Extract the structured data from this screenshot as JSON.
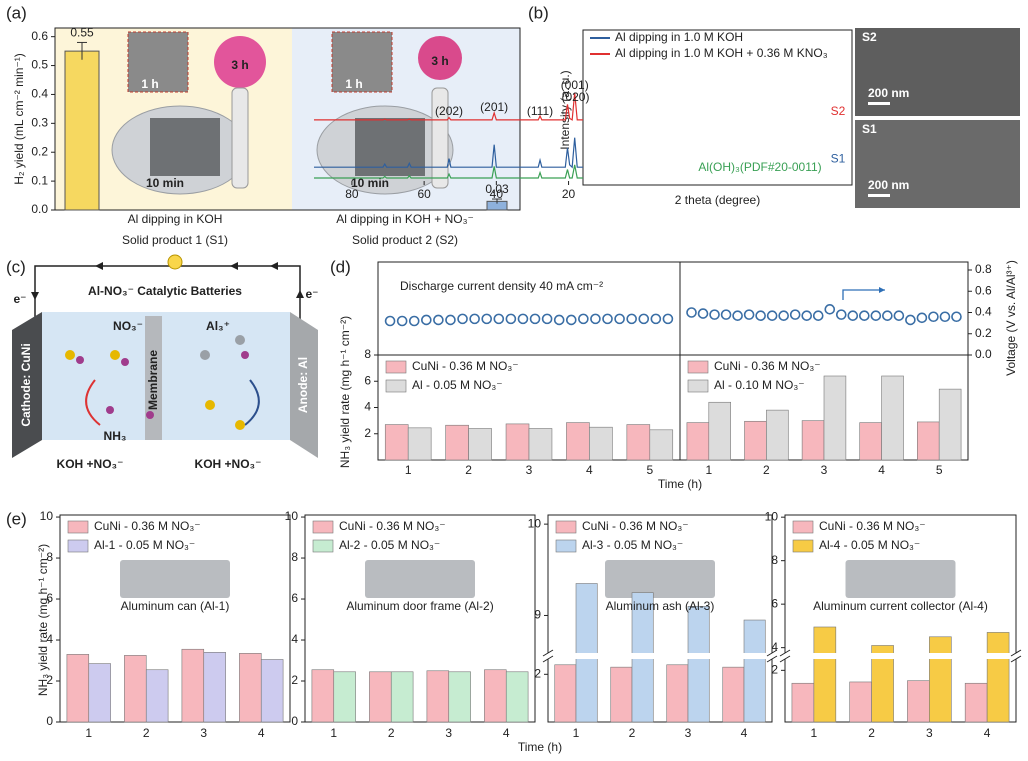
{
  "panels": [
    "(a)",
    "(b)",
    "(c)",
    "(d)",
    "(e)"
  ],
  "chart_data": [
    {
      "type": "bar",
      "ylabel": "H₂ yield (mL cm⁻² min⁻¹)",
      "categories": [
        "Al dipping in  KOH",
        "Al dipping in KOH + NO₃⁻"
      ],
      "sublabels": [
        "Solid product 1 (S1)",
        "Solid product 2 (S2)"
      ],
      "values": [
        0.55,
        0.03
      ],
      "errors": [
        0.03,
        0.008
      ],
      "colors": [
        "#f6d860",
        "#8eb1dc"
      ],
      "ylim": [
        0,
        0.63
      ],
      "yticks": [
        {
          "value": 0,
          "label": "0.0"
        },
        0.1,
        0.2,
        0.3,
        0.4,
        0.5,
        0.6
      ],
      "annotations": [
        "1 h",
        "3 h",
        "10 min",
        "1 h",
        "3 h",
        "10 min"
      ]
    },
    {
      "type": "line",
      "xlabel": "2 theta (degree)",
      "ylabel": "Intensity (a. u.)",
      "xlim": [
        16,
        90.5
      ],
      "xticks": [
        20,
        40,
        60,
        80
      ],
      "ylim": [
        0,
        10
      ],
      "x": [
        16,
        17.6,
        18.3,
        19.0,
        19.7,
        20.3,
        20.9,
        27.4,
        27.9,
        28.4,
        40.0,
        40.6,
        41.2,
        52.6,
        53.1,
        53.6,
        63.6,
        64.1,
        64.6,
        70.4,
        70.9,
        71.4,
        90.5
      ],
      "series": [
        {
          "name": "Al dipping in 1.0 M KOH",
          "label": "S1",
          "color": "#2e5f9e",
          "values": [
            1.15,
            1.15,
            3.05,
            1.15,
            1.3,
            2.4,
            1.15,
            1.15,
            1.6,
            1.15,
            1.15,
            2.6,
            1.15,
            1.15,
            1.7,
            1.15,
            1.15,
            1.4,
            1.15,
            1.15,
            1.35,
            1.15,
            1.15
          ]
        },
        {
          "name": "Al dipping in 1.0 M KOH + 0.36 M KNO₃",
          "label": "S2",
          "color": "#e03030",
          "values": [
            4.2,
            4.2,
            5.95,
            4.2,
            4.3,
            5.2,
            4.2,
            4.2,
            4.45,
            4.2,
            4.2,
            4.65,
            4.2,
            4.2,
            4.35,
            4.2,
            4.2,
            4.25,
            4.2,
            4.2,
            4.25,
            4.2,
            4.2
          ]
        }
      ],
      "reference": {
        "name": "Al(OH)₃(PDF#20-0011)",
        "color": "#3aa055",
        "values": [
          0.45,
          0.45,
          1.3,
          0.45,
          0.45,
          1.0,
          0.45,
          0.45,
          0.8,
          0.45,
          0.45,
          1.2,
          0.45,
          0.45,
          0.7,
          0.45,
          0.45,
          0.6,
          0.45,
          0.45,
          0.55,
          0.45,
          0.45
        ]
      },
      "peaks": [
        {
          "label": "(001)",
          "x": 18.3
        },
        {
          "label": "(020)",
          "x": 20.3
        },
        {
          "label": "(111)",
          "x": 27.9
        },
        {
          "label": "(201)",
          "x": 40.6
        },
        {
          "label": "(202)",
          "x": 53.1
        }
      ],
      "images": [
        {
          "label": "S2",
          "scale": "200 nm"
        },
        {
          "label": "S1",
          "scale": "200 nm"
        }
      ]
    },
    {
      "type": "bar",
      "annotation": "Discharge current density 40 mA cm⁻²",
      "xlabel": "Time (h)",
      "ylabel": "NH₃ yield rate (mg h⁻¹ cm⁻²)",
      "y2label": "Voltage (V vs. Al/Al³⁺)",
      "ylim": [
        0,
        8
      ],
      "yticks": [
        2,
        4,
        6,
        8
      ],
      "y2lim": [
        0,
        0.8
      ],
      "y2ticks": [
        {
          "value": 0,
          "label": "0.0"
        },
        0.2,
        0.4,
        0.6,
        0.8
      ],
      "groups": [
        {
          "categories": [
            "1",
            "2",
            "3",
            "4",
            "5"
          ],
          "series": [
            {
              "name": "CuNi - 0.36 M NO₃⁻",
              "color": "#f7b7bd",
              "values": [
                2.7,
                2.65,
                2.75,
                2.85,
                2.7
              ]
            },
            {
              "name": "Al - 0.05 M NO₃⁻",
              "color": "#dcdcdc",
              "values": [
                2.45,
                2.4,
                2.4,
                2.5,
                2.3
              ]
            }
          ],
          "voltage": {
            "axis": "y2",
            "color": "#3a6ea5",
            "x": [
              0.7,
              0.9,
              1.1,
              1.3,
              1.5,
              1.7,
              1.9,
              2.1,
              2.3,
              2.5,
              2.7,
              2.9,
              3.1,
              3.3,
              3.5,
              3.7,
              3.9,
              4.1,
              4.3,
              4.5,
              4.7,
              4.9,
              5.1,
              5.3
            ],
            "values": [
              0.32,
              0.32,
              0.32,
              0.33,
              0.33,
              0.33,
              0.34,
              0.34,
              0.34,
              0.34,
              0.34,
              0.34,
              0.34,
              0.34,
              0.33,
              0.33,
              0.34,
              0.34,
              0.34,
              0.34,
              0.34,
              0.34,
              0.34,
              0.34
            ]
          }
        },
        {
          "categories": [
            "1",
            "2",
            "3",
            "4",
            "5"
          ],
          "series": [
            {
              "name": "CuNi - 0.36 M NO₃⁻",
              "color": "#f7b7bd",
              "values": [
                2.85,
                2.95,
                3.0,
                2.85,
                2.9
              ]
            },
            {
              "name": "Al - 0.10 M NO₃⁻",
              "color": "#dcdcdc",
              "values": [
                4.4,
                3.8,
                6.4,
                6.4,
                5.4
              ]
            }
          ],
          "voltage": {
            "axis": "y2",
            "color": "#3a6ea5",
            "x": [
              0.7,
              0.9,
              1.1,
              1.3,
              1.5,
              1.7,
              1.9,
              2.1,
              2.3,
              2.5,
              2.7,
              2.9,
              3.1,
              3.3,
              3.5,
              3.7,
              3.9,
              4.1,
              4.3,
              4.5,
              4.7,
              4.9,
              5.1,
              5.3
            ],
            "values": [
              0.4,
              0.39,
              0.38,
              0.38,
              0.37,
              0.38,
              0.37,
              0.37,
              0.37,
              0.38,
              0.37,
              0.37,
              0.43,
              0.38,
              0.37,
              0.37,
              0.37,
              0.37,
              0.37,
              0.33,
              0.35,
              0.36,
              0.36,
              0.36
            ]
          }
        }
      ]
    },
    {
      "type": "bar",
      "ylabel": "NH₃ yield rate (mg h⁻¹ cm⁻²)",
      "xlabel": "Time (h)",
      "categories": [
        "1",
        "2",
        "3",
        "4"
      ],
      "ylim": [
        0,
        10.1
      ],
      "yticks": [
        0,
        2,
        4,
        6,
        8,
        10
      ],
      "series": [
        {
          "name": "CuNi - 0.36 M NO₃⁻",
          "color": "#f7b7bd",
          "values": [
            3.3,
            3.25,
            3.55,
            3.35
          ]
        },
        {
          "name": "Al-1 - 0.05 M NO₃⁻",
          "color": "#cdcbef",
          "values": [
            2.85,
            2.55,
            3.4,
            3.05
          ]
        }
      ],
      "caption": "Aluminum can (Al-1)"
    },
    {
      "type": "bar",
      "categories": [
        "1",
        "2",
        "3",
        "4"
      ],
      "ylim": [
        0,
        10.1
      ],
      "yticks": [
        0,
        2,
        4,
        6,
        8,
        10
      ],
      "series": [
        {
          "name": "CuNi - 0.36 M NO₃⁻",
          "color": "#f7b7bd",
          "values": [
            2.55,
            2.45,
            2.5,
            2.55
          ]
        },
        {
          "name": "Al-2 - 0.05 M NO₃⁻",
          "color": "#c6ecd1",
          "values": [
            2.45,
            2.45,
            2.45,
            2.45
          ]
        }
      ],
      "caption": "Aluminum door frame (Al-2)"
    },
    {
      "type": "bar",
      "categories": [
        "1",
        "2",
        "3",
        "4"
      ],
      "ylim": [
        0,
        2.6
      ],
      "yticks": [
        2
      ],
      "ylim_upper": [
        8.6,
        10.1
      ],
      "yticks_upper": [
        9,
        10
      ],
      "series": [
        {
          "name": "CuNi - 0.36 M NO₃⁻",
          "color": "#f7b7bd",
          "values": [
            2.4,
            2.3,
            2.4,
            2.3
          ]
        },
        {
          "name": "Al-3 - 0.05 M NO₃⁻",
          "color": "#bcd4ee",
          "values": [
            9.35,
            9.25,
            9.1,
            8.95
          ]
        }
      ],
      "caption": "Aluminum ash (Al-3)"
    },
    {
      "type": "bar",
      "categories": [
        "1",
        "2",
        "3",
        "4"
      ],
      "ylim": [
        0,
        2.4
      ],
      "yticks": [
        2
      ],
      "ylim_upper": [
        3.8,
        10.1
      ],
      "yticks_upper": [
        4,
        6,
        8,
        10
      ],
      "series": [
        {
          "name": "CuNi - 0.36 M NO₃⁻",
          "color": "#f7b7bd",
          "values": [
            1.5,
            1.55,
            1.6,
            1.5
          ]
        },
        {
          "name": "Al-4 - 0.05 M NO₃⁻",
          "color": "#f7cb45",
          "values": [
            4.95,
            4.1,
            4.5,
            4.7
          ]
        }
      ],
      "caption": "Aluminum current collector (Al-4)"
    }
  ],
  "diagram": {
    "title": "Al-NO₃⁻ Catalytic Batteries",
    "electrons": [
      "e⁻",
      "e⁻"
    ],
    "ions": [
      "NO₃⁻",
      "Al₃⁺"
    ],
    "cathode": "Cathode: CuNi",
    "anode": "Anode: Al",
    "membrane": "Membrane",
    "product": "NH₃",
    "electrolytes": [
      "KOH +NO₃⁻",
      "KOH +NO₃⁻"
    ]
  }
}
